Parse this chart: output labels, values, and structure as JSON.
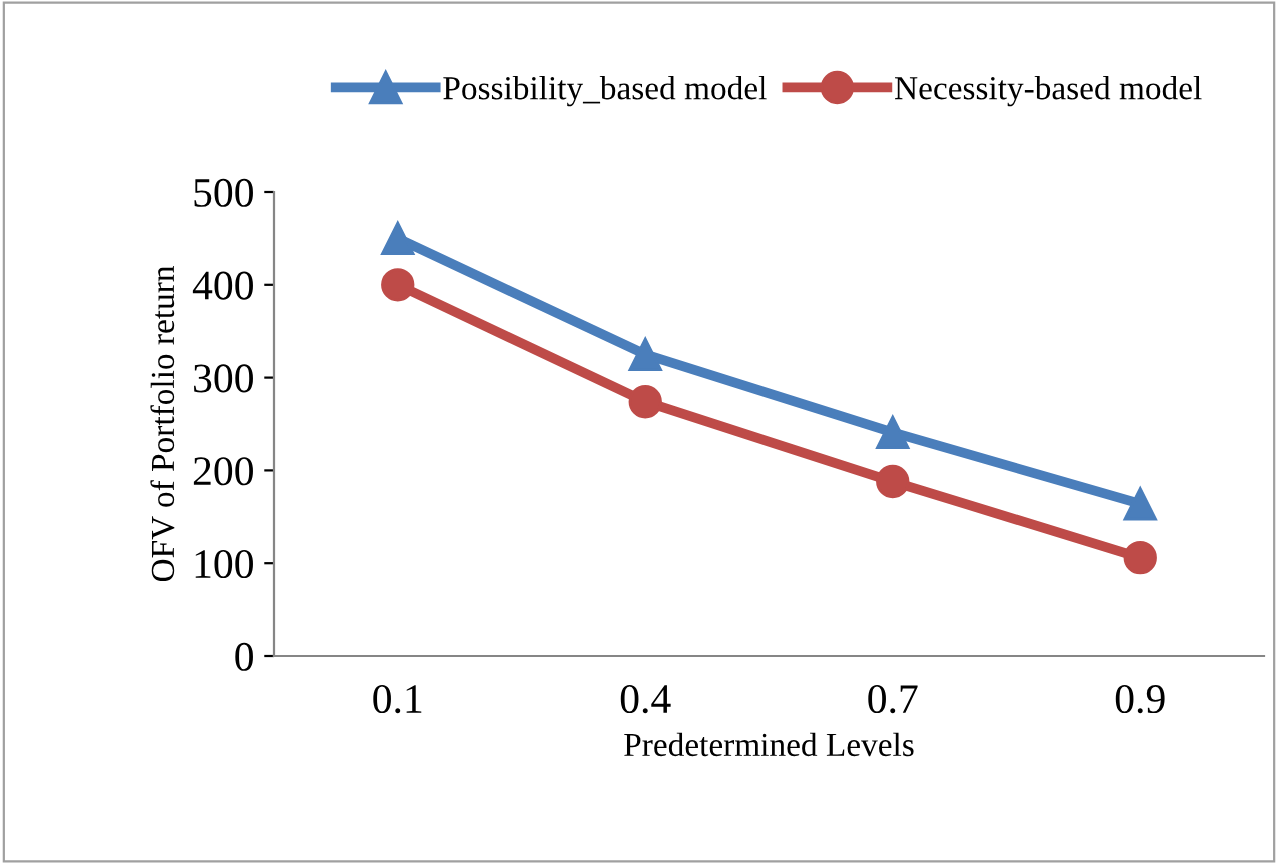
{
  "chart_data": {
    "type": "line",
    "xlabel": "Predetermined Levels",
    "ylabel": "OFV of Portfolio return",
    "categories": [
      "0.1",
      "0.4",
      "0.7",
      "0.9"
    ],
    "series": [
      {
        "name": "Possibility_based model",
        "color": "#4a7ebb",
        "marker": "triangle",
        "values": [
          450,
          325,
          241,
          164
        ]
      },
      {
        "name": "Necessity-based model",
        "color": "#be4b48",
        "marker": "circle",
        "values": [
          400,
          274,
          188,
          106
        ]
      }
    ],
    "ylim": [
      0,
      500
    ],
    "yticks": [
      0,
      100,
      200,
      300,
      400,
      500
    ],
    "grid": false,
    "legend": "top",
    "line_style": "solid"
  }
}
